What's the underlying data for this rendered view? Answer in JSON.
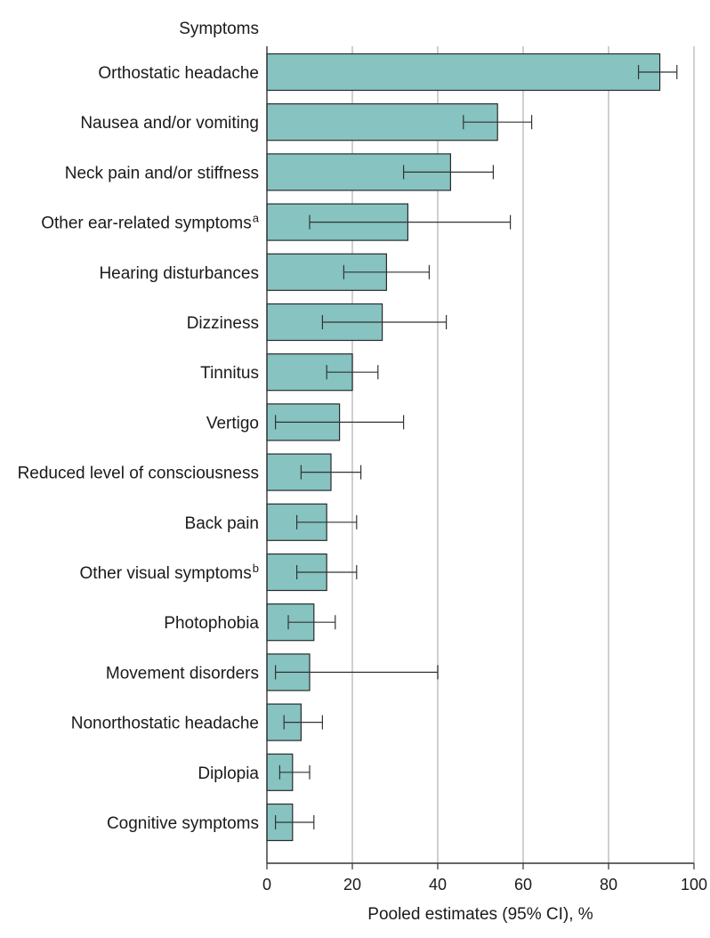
{
  "chart_data": {
    "type": "bar",
    "orientation": "horizontal",
    "category_header": "Symptoms",
    "categories": [
      {
        "label": "Orthostatic headache",
        "sup": ""
      },
      {
        "label": "Nausea and/or vomiting",
        "sup": ""
      },
      {
        "label": "Neck pain and/or stiffness",
        "sup": ""
      },
      {
        "label": "Other ear-related symptoms",
        "sup": "a"
      },
      {
        "label": "Hearing disturbances",
        "sup": ""
      },
      {
        "label": "Dizziness",
        "sup": ""
      },
      {
        "label": "Tinnitus",
        "sup": ""
      },
      {
        "label": "Vertigo",
        "sup": ""
      },
      {
        "label": "Reduced level of consciousness",
        "sup": ""
      },
      {
        "label": "Back pain",
        "sup": ""
      },
      {
        "label": "Other visual symptoms",
        "sup": "b"
      },
      {
        "label": "Photophobia",
        "sup": ""
      },
      {
        "label": "Movement disorders",
        "sup": ""
      },
      {
        "label": "Nonorthostatic headache",
        "sup": ""
      },
      {
        "label": "Diplopia",
        "sup": ""
      },
      {
        "label": "Cognitive symptoms",
        "sup": ""
      }
    ],
    "values": [
      92,
      54,
      43,
      33,
      28,
      27,
      20,
      17,
      15,
      14,
      14,
      11,
      10,
      8,
      6,
      6
    ],
    "ci_low": [
      87,
      46,
      32,
      10,
      18,
      13,
      14,
      2,
      8,
      7,
      7,
      5,
      2,
      4,
      3,
      2
    ],
    "ci_high": [
      96,
      62,
      53,
      57,
      38,
      42,
      26,
      32,
      22,
      21,
      21,
      16,
      40,
      13,
      10,
      11
    ],
    "xlabel": "Pooled estimates (95% CI), %",
    "xlim": [
      0,
      100
    ],
    "xticks": [
      "0",
      "20",
      "40",
      "60",
      "80",
      "100"
    ],
    "grid": "vertical",
    "colors": {
      "bar": "#86c3c1",
      "bar_stroke": "#2a2a2a",
      "grid": "#d0d0d0",
      "axis": "#333333",
      "error": "#333333"
    }
  }
}
